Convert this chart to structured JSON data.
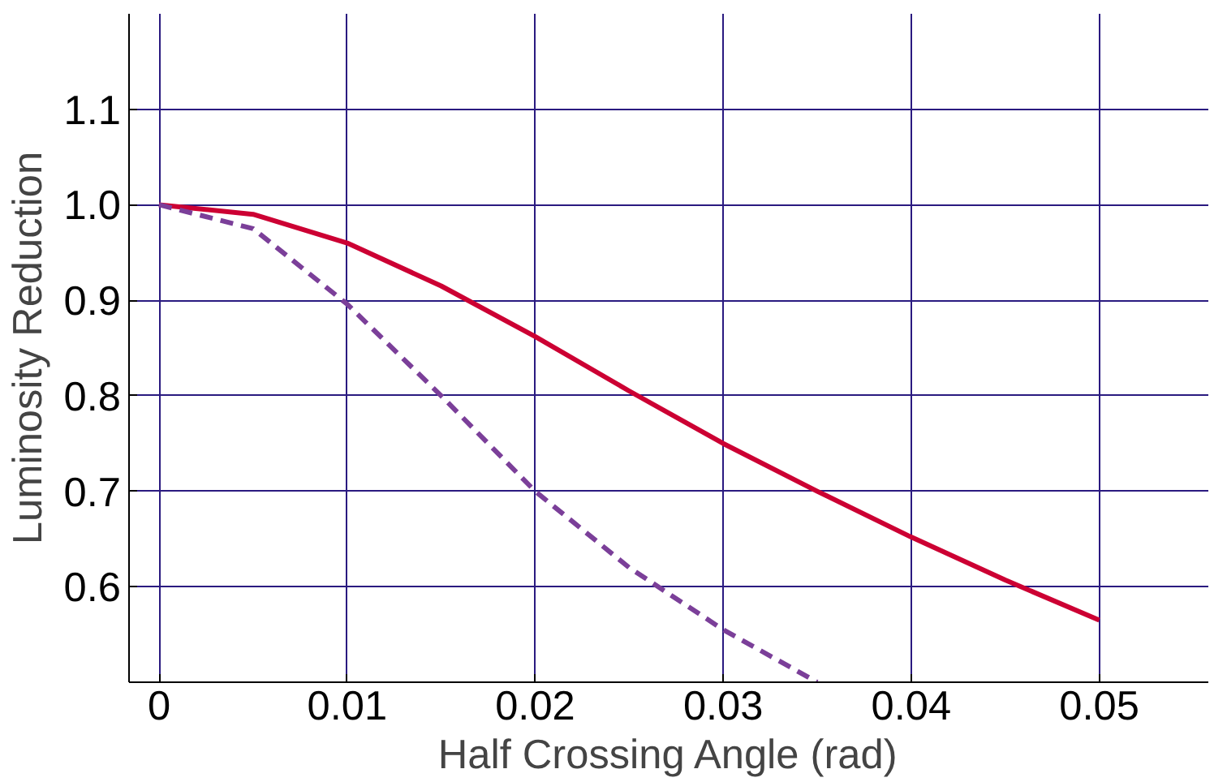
{
  "chart_data": {
    "type": "line",
    "xlabel": "Half Crossing Angle (rad)",
    "ylabel": "Luminosity Reduction",
    "xlim": [
      -0.0016,
      0.0558
    ],
    "ylim": [
      0.5,
      1.2
    ],
    "xticks": [
      0,
      0.01,
      0.02,
      0.03,
      0.04,
      0.05
    ],
    "yticks": [
      {
        "value": 0.6,
        "label": "0.6"
      },
      {
        "value": 0.7,
        "label": "0.7"
      },
      {
        "value": 0.8,
        "label": "0.8"
      },
      {
        "value": 0.9,
        "label": "0.9"
      },
      {
        "value": 1.0,
        "label": "1.0"
      },
      {
        "value": 1.1,
        "label": "1.1"
      }
    ],
    "grid": true,
    "series": [
      {
        "color": "#cc0033",
        "line_style": "solid",
        "x": [
          0,
          0.005,
          0.01,
          0.015,
          0.02,
          0.025,
          0.03,
          0.035,
          0.04,
          0.045,
          0.05
        ],
        "values": [
          1.0,
          0.99,
          0.96,
          0.915,
          0.862,
          0.805,
          0.75,
          0.7,
          0.652,
          0.607,
          0.565
        ]
      },
      {
        "color": "#7b3f99",
        "line_style": "dashed",
        "x": [
          0,
          0.005,
          0.01,
          0.015,
          0.02,
          0.025,
          0.03,
          0.035
        ],
        "values": [
          1.0,
          0.975,
          0.896,
          0.8,
          0.7,
          0.62,
          0.555,
          0.5
        ]
      }
    ]
  }
}
